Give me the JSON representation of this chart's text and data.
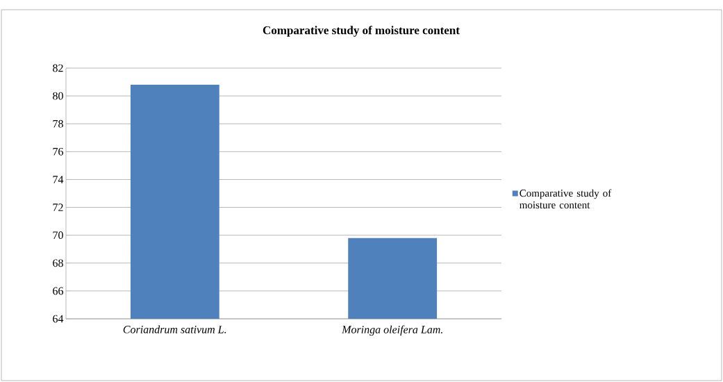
{
  "chart_data": {
    "type": "bar",
    "title": "Comparative study of moisture content",
    "categories": [
      "Coriandrum sativum L.",
      "Moringa oleifera Lam."
    ],
    "series": [
      {
        "name": "Comparative study of moisture content",
        "color": "#4f81bd",
        "values": [
          80.8,
          69.8
        ]
      }
    ],
    "ylim": [
      64,
      82
    ],
    "yticks": [
      64,
      66,
      68,
      70,
      72,
      74,
      76,
      78,
      80,
      82
    ],
    "grid": "y",
    "legend": "right"
  }
}
